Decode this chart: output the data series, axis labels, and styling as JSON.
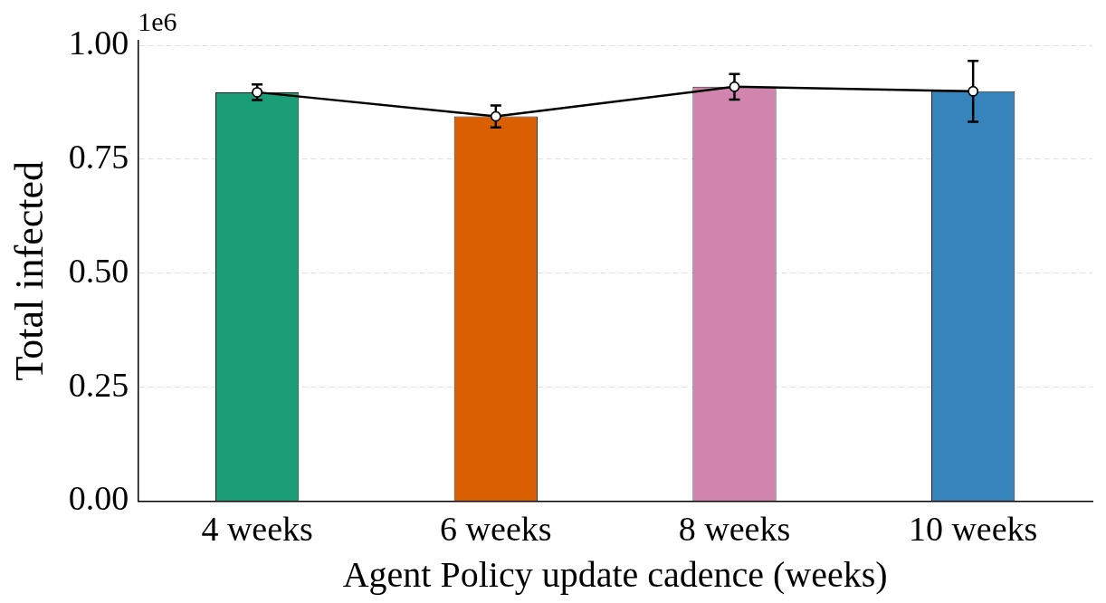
{
  "chart_data": {
    "type": "bar",
    "xlabel": "Agent Policy update cadence (weeks)",
    "ylabel": "Total infected",
    "categories": [
      "4 weeks",
      "6 weeks",
      "8 weeks",
      "10 weeks"
    ],
    "series": [
      {
        "colors": [
          "#1b9e77",
          "#d95f02",
          "#d084ae",
          "#3784bd"
        ],
        "values": [
          0.897,
          0.844,
          0.909,
          0.899
        ]
      },
      {
        "type": "line",
        "color": "#000000",
        "values": [
          0.897,
          0.844,
          0.909,
          0.899
        ],
        "errors": [
          0.017,
          0.024,
          0.028,
          0.067
        ]
      }
    ],
    "ylim": [
      0,
      1.01
    ],
    "yticks": [
      {
        "value": 0,
        "label": "0.00"
      },
      0.25,
      {
        "value": 0.5,
        "label": "0.50"
      },
      0.75,
      {
        "value": 1,
        "label": "1.00"
      }
    ],
    "annotations": [
      "1e6"
    ],
    "grid": "y",
    "legend": false,
    "marker": "circle",
    "line_style": "solid"
  }
}
